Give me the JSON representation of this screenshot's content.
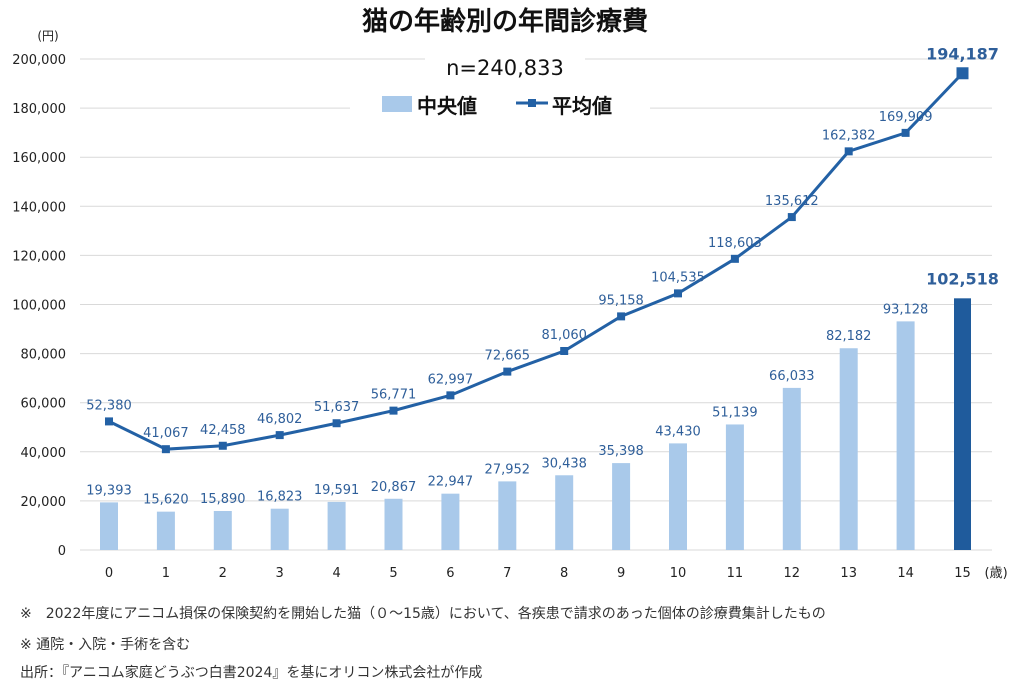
{
  "chart_data": {
    "type": "bar+line",
    "title": "猫の年齢別の年間診療費",
    "subtitle": "n=240,833",
    "ylabel": "(円)",
    "xlabel_unit": "(歳)",
    "ylim": [
      0,
      200000
    ],
    "yticks": [
      0,
      20000,
      40000,
      60000,
      80000,
      100000,
      120000,
      140000,
      160000,
      180000,
      200000
    ],
    "ytick_labels": [
      "0",
      "20,000",
      "40,000",
      "60,000",
      "80,000",
      "100,000",
      "120,000",
      "140,000",
      "160,000",
      "180,000",
      "200,000"
    ],
    "grid": true,
    "legend_placement": "top-center",
    "categories": [
      "0",
      "1",
      "2",
      "3",
      "4",
      "5",
      "6",
      "7",
      "8",
      "9",
      "10",
      "11",
      "12",
      "13",
      "14",
      "15"
    ],
    "series": [
      {
        "name": "中央値",
        "type": "bar",
        "color": "#a9c9ea",
        "highlight_color": "#1f5b9c",
        "values": [
          19393,
          15620,
          15890,
          16823,
          19591,
          20867,
          22947,
          27952,
          30438,
          35398,
          43430,
          51139,
          66033,
          82182,
          93128,
          102518
        ],
        "labels": [
          "19,393",
          "15,620",
          "15,890",
          "16,823",
          "19,591",
          "20,867",
          "22,947",
          "27,952",
          "30,438",
          "35,398",
          "43,430",
          "51,139",
          "66,033",
          "82,182",
          "93,128",
          "102,518"
        ]
      },
      {
        "name": "平均値",
        "type": "line",
        "color": "#2361a5",
        "values": [
          52380,
          41067,
          42458,
          46802,
          51637,
          56771,
          62997,
          72665,
          81060,
          95158,
          104535,
          118603,
          135612,
          162382,
          169909,
          194187
        ],
        "labels": [
          "52,380",
          "41,067",
          "42,458",
          "46,802",
          "51,637",
          "56,771",
          "62,997",
          "72,665",
          "81,060",
          "95,158",
          "104,535",
          "118,603",
          "135,612",
          "162,382",
          "169,909",
          "194,187"
        ]
      }
    ]
  },
  "notes": [
    "※　2022年度にアニコム損保の保険契約を開始した猫（０～15歳）において、各疾患で請求のあった個体の診療費集計したもの",
    "※ 通院・入院・手術を含む",
    "出所：『アニコム家庭どうぶつ白書2024』を基にオリコン株式会社が作成"
  ]
}
